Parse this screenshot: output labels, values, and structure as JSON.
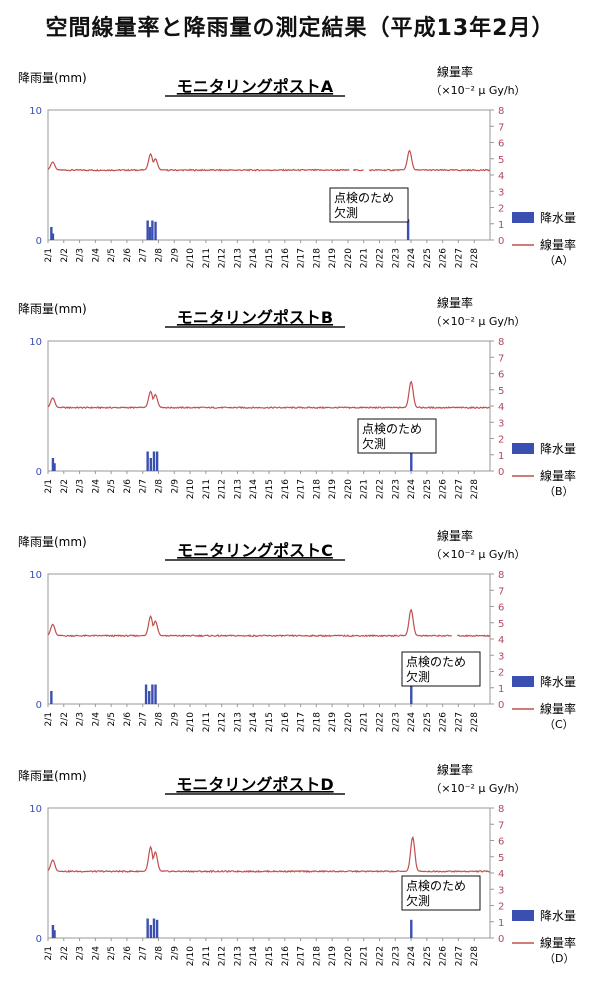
{
  "page_title": "空間線量率と降雨量の測定結果（平成13年2月）",
  "colors": {
    "rain": "#3a4fb0",
    "dose": "#c0504d",
    "axis_right": "#b04a5a",
    "axis_left": "#3a4fb0",
    "grid": "#999999"
  },
  "chart_data": [
    {
      "type": "bar+line",
      "title": "モニタリングポストA",
      "left_axis_label": "降雨量(mm)",
      "right_axis_label": "線量率",
      "right_axis_unit": "（×10⁻² μ Gy/h）",
      "left_ticks": [
        "10",
        "0"
      ],
      "right_ticks": [
        "8",
        "7",
        "6",
        "5",
        "4",
        "3",
        "2",
        "1",
        "0"
      ],
      "categories": [
        "2/1",
        "2/2",
        "2/3",
        "2/4",
        "2/5",
        "2/6",
        "2/7",
        "2/8",
        "2/9",
        "2/10",
        "2/11",
        "2/12",
        "2/13",
        "2/14",
        "2/15",
        "2/16",
        "2/17",
        "2/18",
        "2/19",
        "2/20",
        "2/21",
        "2/22",
        "2/23",
        "2/24",
        "2/25",
        "2/26",
        "2/27",
        "2/28"
      ],
      "annotation": "点検のため\n欠測",
      "legend": {
        "rain": "降水量",
        "dose": "線量率",
        "dose_sub": "（A）"
      },
      "rain_bars": [
        [
          1.2,
          1.0
        ],
        [
          1.3,
          0.5
        ],
        [
          7.3,
          1.5
        ],
        [
          7.45,
          1.0
        ],
        [
          7.6,
          1.5
        ],
        [
          7.8,
          1.4
        ],
        [
          23.8,
          1.6
        ]
      ],
      "dose_base": 4.3,
      "dose_peaks": [
        [
          1.3,
          4.8
        ],
        [
          7.5,
          5.3
        ],
        [
          7.8,
          5.0
        ],
        [
          23.9,
          5.5
        ]
      ],
      "dose_gaps": [
        [
          20.1,
          20.3
        ],
        [
          21.0,
          21.3
        ]
      ]
    },
    {
      "type": "bar+line",
      "title": "モニタリングポストB",
      "left_axis_label": "降雨量(mm)",
      "right_axis_label": "線量率",
      "right_axis_unit": "（×10⁻² μ Gy/h）",
      "left_ticks": [
        "10",
        "0"
      ],
      "right_ticks": [
        "8",
        "7",
        "6",
        "5",
        "4",
        "3",
        "2",
        "1",
        "0"
      ],
      "categories": [
        "2/1",
        "2/2",
        "2/3",
        "2/4",
        "2/5",
        "2/6",
        "2/7",
        "2/8",
        "2/9",
        "2/10",
        "2/11",
        "2/12",
        "2/13",
        "2/14",
        "2/15",
        "2/16",
        "2/17",
        "2/18",
        "2/19",
        "2/20",
        "2/21",
        "2/22",
        "2/23",
        "2/24",
        "2/25",
        "2/26",
        "2/27",
        "2/28"
      ],
      "annotation": "点検のため\n欠測",
      "legend": {
        "rain": "降水量",
        "dose": "線量率",
        "dose_sub": "（B）"
      },
      "rain_bars": [
        [
          1.3,
          1.0
        ],
        [
          1.4,
          0.6
        ],
        [
          7.3,
          1.5
        ],
        [
          7.5,
          1.0
        ],
        [
          7.7,
          1.5
        ],
        [
          7.9,
          1.5
        ],
        [
          24.0,
          1.5
        ]
      ],
      "dose_base": 3.9,
      "dose_peaks": [
        [
          1.3,
          4.5
        ],
        [
          7.5,
          4.9
        ],
        [
          7.8,
          4.7
        ],
        [
          24.0,
          5.5
        ]
      ],
      "dose_gaps": []
    },
    {
      "type": "bar+line",
      "title": "モニタリングポストC",
      "left_axis_label": "降雨量(mm)",
      "right_axis_label": "線量率",
      "right_axis_unit": "（×10⁻² μ Gy/h）",
      "left_ticks": [
        "10",
        "0"
      ],
      "right_ticks": [
        "8",
        "7",
        "6",
        "5",
        "4",
        "3",
        "2",
        "1",
        "0"
      ],
      "categories": [
        "2/1",
        "2/2",
        "2/3",
        "2/4",
        "2/5",
        "2/6",
        "2/7",
        "2/8",
        "2/9",
        "2/10",
        "2/11",
        "2/12",
        "2/13",
        "2/14",
        "2/15",
        "2/16",
        "2/17",
        "2/18",
        "2/19",
        "2/20",
        "2/21",
        "2/22",
        "2/23",
        "2/24",
        "2/25",
        "2/26",
        "2/27",
        "2/28"
      ],
      "annotation": "点検のため\n欠測",
      "legend": {
        "rain": "降水量",
        "dose": "線量率",
        "dose_sub": "（C）"
      },
      "rain_bars": [
        [
          1.2,
          1.0
        ],
        [
          7.2,
          1.5
        ],
        [
          7.4,
          1.0
        ],
        [
          7.6,
          1.5
        ],
        [
          7.8,
          1.5
        ],
        [
          24.0,
          1.4
        ]
      ],
      "dose_base": 4.2,
      "dose_peaks": [
        [
          1.3,
          4.9
        ],
        [
          7.5,
          5.4
        ],
        [
          7.8,
          5.1
        ],
        [
          24.0,
          5.8
        ]
      ],
      "dose_gaps": [
        [
          26.6,
          26.9
        ]
      ]
    },
    {
      "type": "bar+line",
      "title": "モニタリングポストD",
      "left_axis_label": "降雨量(mm)",
      "right_axis_label": "線量率",
      "right_axis_unit": "（×10⁻² μ Gy/h）",
      "left_ticks": [
        "10",
        "0"
      ],
      "right_ticks": [
        "8",
        "7",
        "6",
        "5",
        "4",
        "3",
        "2",
        "1",
        "0"
      ],
      "categories": [
        "2/1",
        "2/2",
        "2/3",
        "2/4",
        "2/5",
        "2/6",
        "2/7",
        "2/8",
        "2/9",
        "2/10",
        "2/11",
        "2/12",
        "2/13",
        "2/14",
        "2/15",
        "2/16",
        "2/17",
        "2/18",
        "2/19",
        "2/20",
        "2/21",
        "2/22",
        "2/23",
        "2/24",
        "2/25",
        "2/26",
        "2/27",
        "2/28"
      ],
      "annotation": "点検のため\n欠測",
      "legend": {
        "rain": "降水量",
        "dose": "線量率",
        "dose_sub": "（D）"
      },
      "rain_bars": [
        [
          1.3,
          1.0
        ],
        [
          1.4,
          0.6
        ],
        [
          7.3,
          1.5
        ],
        [
          7.5,
          1.0
        ],
        [
          7.7,
          1.5
        ],
        [
          7.9,
          1.4
        ],
        [
          24.0,
          1.4
        ]
      ],
      "dose_base": 4.1,
      "dose_peaks": [
        [
          1.3,
          4.8
        ],
        [
          7.5,
          5.6
        ],
        [
          7.8,
          5.3
        ],
        [
          24.1,
          6.2
        ]
      ],
      "dose_gaps": []
    }
  ]
}
